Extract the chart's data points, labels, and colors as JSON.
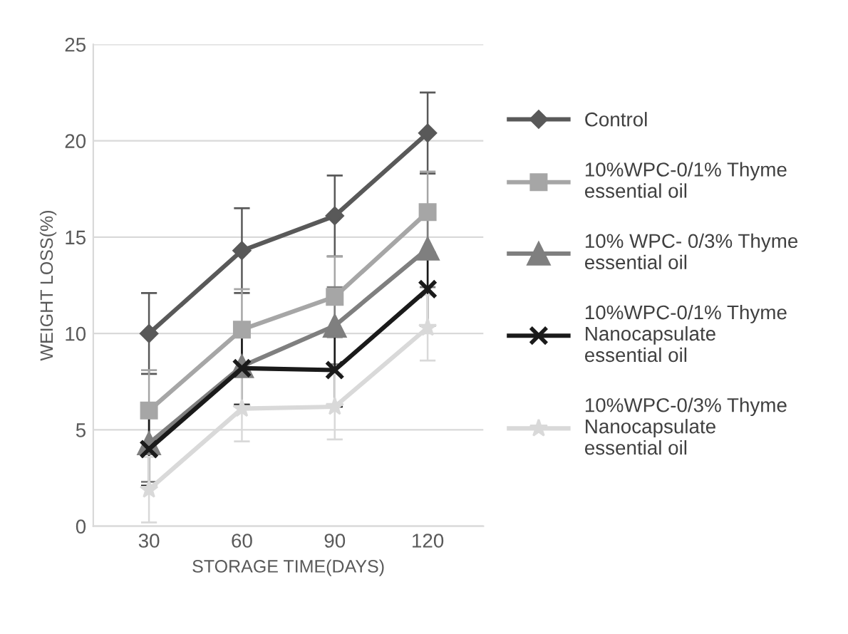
{
  "chart_data": {
    "type": "line",
    "xlabel": "STORAGE TIME(DAYS)",
    "ylabel": "WEIGHT LOSS(%)",
    "categories": [
      "30",
      "60",
      "90",
      "120"
    ],
    "ylim": [
      0,
      25
    ],
    "yticks": [
      0,
      5,
      10,
      15,
      20,
      25
    ],
    "grid": "y",
    "legend": "right",
    "series": [
      {
        "name": "Control",
        "color": "#595959",
        "marker": "diamond",
        "values": [
          10.0,
          14.3,
          16.1,
          20.4
        ],
        "errors": [
          2.1,
          2.2,
          2.1,
          2.1
        ]
      },
      {
        "name": "10%WPC-0/1% Thyme essential oil",
        "color": "#a6a6a6",
        "marker": "square",
        "values": [
          6.0,
          10.2,
          11.9,
          16.3
        ],
        "errors": [
          2.1,
          2.1,
          2.1,
          2.1
        ]
      },
      {
        "name": "10% WPC- 0/3% Thyme essential oil",
        "color": "#7f7f7f",
        "marker": "triangle",
        "values": [
          4.3,
          8.3,
          10.4,
          14.4
        ],
        "errors": [
          2.0,
          2.0,
          2.0,
          2.0
        ]
      },
      {
        "name": "10%WPC-0/1% Thyme Nanocapsulate essential oil",
        "color": "#1a1a1a",
        "marker": "cross",
        "values": [
          4.0,
          8.2,
          8.1,
          12.3
        ],
        "errors": [
          1.9,
          1.9,
          1.9,
          1.9
        ]
      },
      {
        "name": "10%WPC-0/3% Thyme Nanocapsulate essential oil",
        "color": "#d9d9d9",
        "marker": "star",
        "values": [
          1.9,
          6.1,
          6.2,
          10.3
        ],
        "errors": [
          1.7,
          1.7,
          1.7,
          1.7
        ]
      }
    ]
  }
}
